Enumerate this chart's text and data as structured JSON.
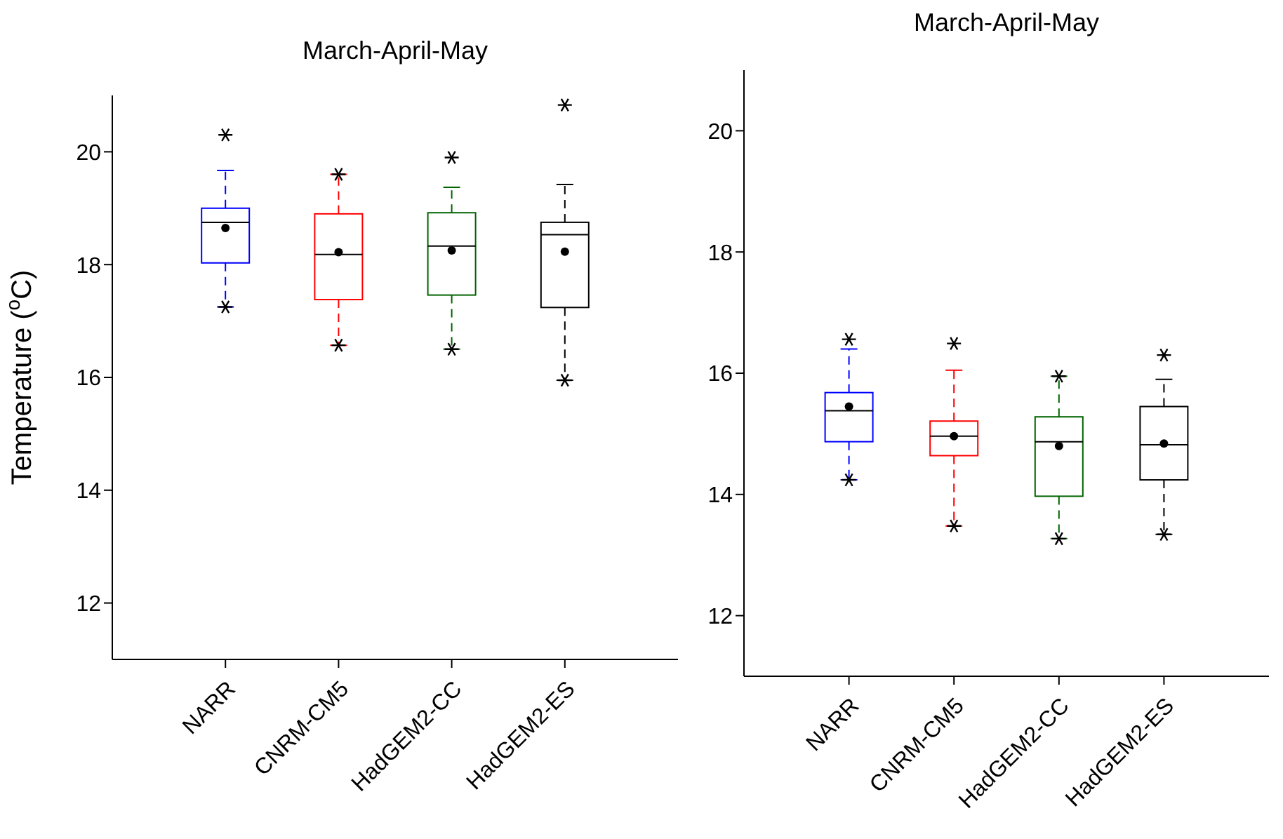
{
  "chart_data": [
    {
      "type": "box",
      "title": "March-April-May",
      "ylabel": "Temperature ($^{o}$C)",
      "categories": [
        "NARR",
        "CNRM-CM5",
        "HadGEM2-CC",
        "HadGEM2-ES"
      ],
      "colors": [
        "#0000ff",
        "#ff0000",
        "#006400",
        "#000000"
      ],
      "ylim": [
        11,
        21
      ],
      "yticks": [
        12,
        14,
        16,
        18,
        20
      ],
      "boxes": [
        {
          "low": 17.25,
          "q1": 18.03,
          "median": 18.75,
          "q3": 19.0,
          "high": 19.67,
          "mean": 18.65,
          "outliers": [
            20.3
          ]
        },
        {
          "low": 16.57,
          "q1": 17.38,
          "median": 18.18,
          "q3": 18.9,
          "high": 19.6,
          "mean": 18.22
        },
        {
          "low": 16.5,
          "q1": 17.46,
          "median": 18.33,
          "q3": 18.92,
          "high": 19.37,
          "mean": 18.25,
          "outliers": [
            19.9
          ]
        },
        {
          "low": 15.95,
          "q1": 17.24,
          "median": 18.53,
          "q3": 18.75,
          "high": 19.42,
          "mean": 18.23,
          "outliers": [
            20.83
          ]
        }
      ]
    },
    {
      "type": "box",
      "title": "March-April-May",
      "categories": [
        "NARR",
        "CNRM-CM5",
        "HadGEM2-CC",
        "HadGEM2-ES"
      ],
      "colors": [
        "#0000ff",
        "#ff0000",
        "#006400",
        "#000000"
      ],
      "ylim": [
        11,
        21
      ],
      "yticks": [
        12,
        14,
        16,
        18,
        20
      ],
      "boxes": [
        {
          "low": 14.24,
          "q1": 14.87,
          "median": 15.38,
          "q3": 15.68,
          "high": 16.4,
          "mean": 15.45,
          "outliers": [
            16.56
          ]
        },
        {
          "low": 13.48,
          "q1": 14.64,
          "median": 14.96,
          "q3": 15.21,
          "high": 16.05,
          "mean": 14.96,
          "outliers": [
            16.49
          ]
        },
        {
          "low": 13.27,
          "q1": 13.97,
          "median": 14.87,
          "q3": 15.28,
          "high": 15.95,
          "mean": 14.8
        },
        {
          "low": 13.34,
          "q1": 14.24,
          "median": 14.82,
          "q3": 15.45,
          "high": 15.9,
          "mean": 14.84,
          "outliers": [
            16.3
          ]
        }
      ]
    }
  ]
}
